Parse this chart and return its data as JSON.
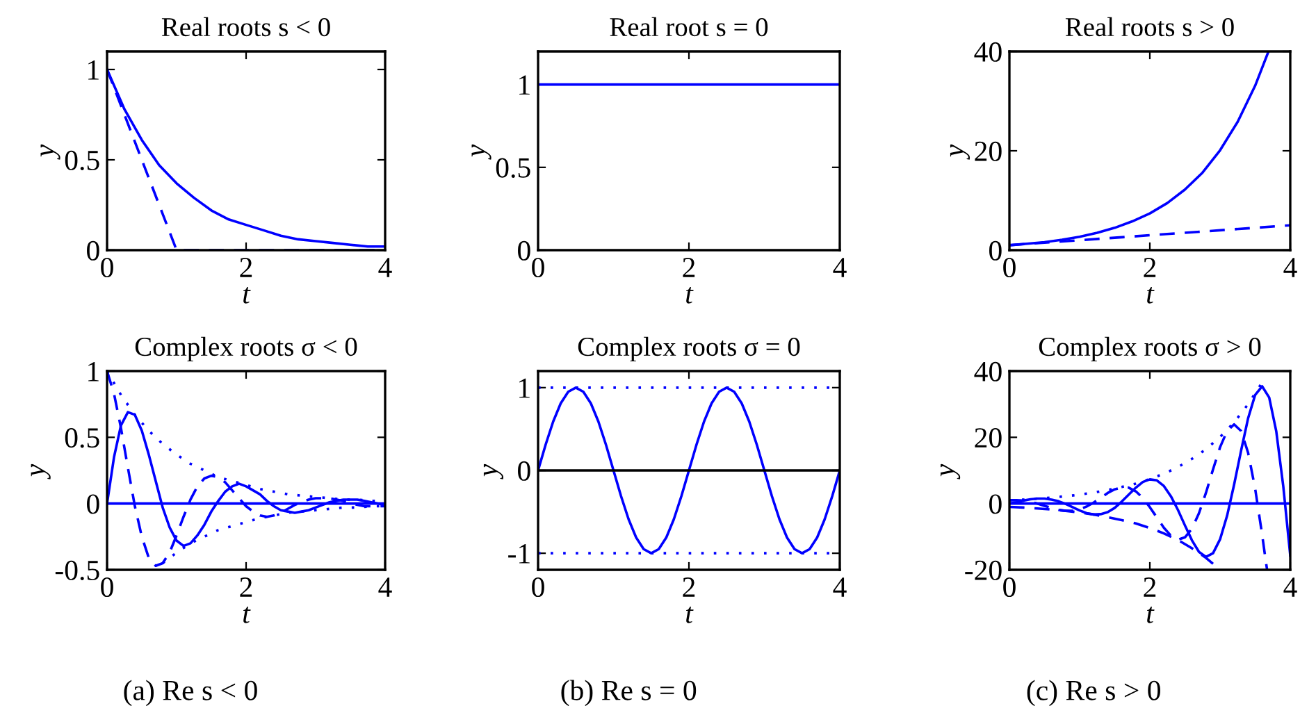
{
  "chart_data": [
    {
      "type": "line",
      "title": "Real roots s < 0",
      "xlabel": "t",
      "ylabel": "y",
      "xlim": [
        0,
        4
      ],
      "xticks": [
        0,
        2,
        4
      ],
      "ylim": [
        0,
        1.1
      ],
      "yticks": [
        0,
        0.5,
        1
      ],
      "series": [
        {
          "color": "#0000ff",
          "line_style": "solid",
          "x": [
            0,
            0.25,
            0.5,
            0.75,
            1,
            1.25,
            1.5,
            1.75,
            2,
            2.25,
            2.5,
            2.75,
            3,
            3.25,
            3.5,
            3.75,
            4
          ],
          "values": [
            1,
            0.78,
            0.61,
            0.47,
            0.37,
            0.29,
            0.22,
            0.17,
            0.14,
            0.11,
            0.08,
            0.06,
            0.05,
            0.04,
            0.03,
            0.02,
            0.02
          ]
        },
        {
          "color": "#0000ff",
          "line_style": "dashed",
          "x": [
            0,
            1,
            4
          ],
          "values": [
            1,
            0,
            0
          ]
        }
      ]
    },
    {
      "type": "line",
      "title": "Real root s = 0",
      "xlabel": "t",
      "ylabel": "y",
      "xlim": [
        0,
        4
      ],
      "xticks": [
        0,
        2,
        4
      ],
      "ylim": [
        0,
        1.2
      ],
      "yticks": [
        0,
        0.5,
        1
      ],
      "series": [
        {
          "color": "#0000ff",
          "line_style": "solid",
          "x": [
            0,
            4
          ],
          "values": [
            1,
            1
          ]
        }
      ]
    },
    {
      "type": "line",
      "title": "Real roots s > 0",
      "xlabel": "t",
      "ylabel": "y",
      "xlim": [
        0,
        4
      ],
      "xticks": [
        0,
        2,
        4
      ],
      "ylim": [
        0,
        40
      ],
      "yticks": [
        0,
        20,
        40
      ],
      "series": [
        {
          "color": "#0000ff",
          "line_style": "solid",
          "x": [
            0,
            0.25,
            0.5,
            0.75,
            1,
            1.25,
            1.5,
            1.75,
            2,
            2.25,
            2.5,
            2.75,
            3,
            3.25,
            3.5,
            3.69
          ],
          "values": [
            1,
            1.3,
            1.6,
            2.1,
            2.7,
            3.5,
            4.5,
            5.8,
            7.4,
            9.5,
            12.2,
            15.6,
            20.1,
            25.8,
            33.1,
            40
          ]
        },
        {
          "color": "#0000ff",
          "line_style": "dashed",
          "x": [
            0,
            4
          ],
          "values": [
            1,
            5
          ]
        }
      ]
    },
    {
      "type": "line",
      "title": "Complex roots σ < 0",
      "xlabel": "t",
      "ylabel": "y",
      "xlim": [
        0,
        4
      ],
      "xticks": [
        0,
        2,
        4
      ],
      "ylim": [
        -0.5,
        1
      ],
      "yticks": [
        -0.5,
        0,
        0.5,
        1
      ],
      "annotations": [
        "(a) Re s < 0"
      ],
      "series": [
        {
          "color": "#0000ff",
          "line_style": "solid",
          "x": [
            0,
            0.1,
            0.2,
            0.3,
            0.4,
            0.5,
            0.6,
            0.7,
            0.8,
            0.9,
            1.0,
            1.1,
            1.2,
            1.3,
            1.4,
            1.5,
            1.6,
            1.7,
            1.8,
            1.9,
            2.0,
            2.1,
            2.2,
            2.3,
            2.4,
            2.5,
            2.6,
            2.7,
            2.8,
            2.9,
            3.0,
            3.1,
            3.2,
            3.3,
            3.4,
            3.5,
            3.6,
            3.7,
            3.8,
            3.9,
            4.0
          ],
          "values": [
            0,
            0.35,
            0.59,
            0.69,
            0.67,
            0.55,
            0.37,
            0.17,
            -0.03,
            -0.18,
            -0.28,
            -0.32,
            -0.3,
            -0.24,
            -0.16,
            -0.06,
            0.02,
            0.09,
            0.13,
            0.15,
            0.13,
            0.1,
            0.07,
            0.02,
            -0.02,
            -0.05,
            -0.06,
            -0.07,
            -0.06,
            -0.05,
            -0.03,
            -0.01,
            0.01,
            0.02,
            0.03,
            0.03,
            0.03,
            0.02,
            0.01,
            0,
            -0.01
          ]
        },
        {
          "color": "#0000ff",
          "line_style": "dashed",
          "x": [
            0,
            0.1,
            0.2,
            0.3,
            0.4,
            0.5,
            0.6,
            0.7,
            0.8,
            0.9,
            1.0,
            1.1,
            1.2,
            1.3,
            1.4,
            1.5,
            1.6,
            1.7,
            1.8,
            1.9,
            2.0,
            2.1,
            2.2,
            2.3,
            2.4,
            2.5,
            2.6,
            2.7,
            2.8,
            2.9,
            3.0,
            3.1,
            3.2,
            3.3,
            3.4,
            3.5,
            3.6,
            3.7,
            3.8,
            3.9,
            4.0
          ],
          "values": [
            1,
            0.83,
            0.57,
            0.27,
            -0.02,
            -0.25,
            -0.41,
            -0.47,
            -0.45,
            -0.37,
            -0.24,
            -0.1,
            0.03,
            0.13,
            0.19,
            0.21,
            0.2,
            0.16,
            0.1,
            0.04,
            -0.02,
            -0.06,
            -0.09,
            -0.1,
            -0.09,
            -0.07,
            -0.04,
            -0.01,
            0.01,
            0.03,
            0.04,
            0.04,
            0.04,
            0.03,
            0.02,
            0,
            -0.01,
            -0.02,
            -0.02,
            -0.02,
            -0.02
          ]
        },
        {
          "color": "#0000ff",
          "line_style": "dotted",
          "x": [
            0,
            0.2,
            0.4,
            0.6,
            0.8,
            1.0,
            1.2,
            1.4,
            1.6,
            1.8,
            2.0,
            2.2,
            2.4,
            2.6,
            2.8,
            3.0,
            3.2,
            3.4,
            3.6,
            3.8,
            4.0
          ],
          "values": [
            1,
            0.82,
            0.67,
            0.55,
            0.45,
            0.37,
            0.3,
            0.25,
            0.2,
            0.17,
            0.14,
            0.11,
            0.09,
            0.07,
            0.06,
            0.05,
            0.04,
            0.03,
            0.03,
            0.02,
            0.02
          ]
        },
        {
          "color": "#0000ff",
          "line_style": "dotted",
          "x": [
            0.8,
            1.0,
            1.2,
            1.4,
            1.6,
            1.8,
            2.0,
            2.2,
            2.4,
            2.6,
            2.8,
            3.0,
            3.2,
            3.4,
            3.6,
            3.8,
            4.0
          ],
          "values": [
            -0.45,
            -0.37,
            -0.3,
            -0.25,
            -0.2,
            -0.17,
            -0.14,
            -0.11,
            -0.09,
            -0.07,
            -0.06,
            -0.05,
            -0.04,
            -0.03,
            -0.03,
            -0.02,
            -0.02
          ]
        },
        {
          "color": "#0000ff",
          "line_style": "solid",
          "x": [
            0,
            4
          ],
          "values": [
            0,
            0
          ]
        }
      ]
    },
    {
      "type": "line",
      "title": "Complex roots σ = 0",
      "xlabel": "t",
      "ylabel": "y",
      "xlim": [
        0,
        4
      ],
      "xticks": [
        0,
        2,
        4
      ],
      "ylim": [
        -1.2,
        1.2
      ],
      "yticks": [
        -1,
        0,
        1
      ],
      "annotations": [
        "(b) Re s = 0"
      ],
      "series": [
        {
          "color": "#0000ff",
          "line_style": "solid",
          "x": [
            0,
            0.1,
            0.2,
            0.3,
            0.4,
            0.5,
            0.6,
            0.7,
            0.8,
            0.9,
            1.0,
            1.1,
            1.2,
            1.3,
            1.4,
            1.5,
            1.6,
            1.7,
            1.8,
            1.9,
            2.0,
            2.1,
            2.2,
            2.3,
            2.4,
            2.5,
            2.6,
            2.7,
            2.8,
            2.9,
            3.0,
            3.1,
            3.2,
            3.3,
            3.4,
            3.5,
            3.6,
            3.7,
            3.8,
            3.9,
            4.0
          ],
          "values": [
            0,
            0.31,
            0.59,
            0.81,
            0.95,
            1,
            0.95,
            0.81,
            0.59,
            0.31,
            0,
            -0.31,
            -0.59,
            -0.81,
            -0.95,
            -1,
            -0.95,
            -0.81,
            -0.59,
            -0.31,
            0,
            0.31,
            0.59,
            0.81,
            0.95,
            1,
            0.95,
            0.81,
            0.59,
            0.31,
            0,
            -0.31,
            -0.59,
            -0.81,
            -0.95,
            -1,
            -0.95,
            -0.81,
            -0.59,
            -0.31,
            0
          ]
        },
        {
          "color": "#0000ff",
          "line_style": "dotted",
          "x": [
            0,
            4
          ],
          "values": [
            1,
            1
          ]
        },
        {
          "color": "#0000ff",
          "line_style": "dotted",
          "x": [
            0,
            4
          ],
          "values": [
            -1,
            -1
          ]
        },
        {
          "color": "#000000",
          "line_style": "solid",
          "x": [
            0,
            4
          ],
          "values": [
            0,
            0
          ]
        }
      ]
    },
    {
      "type": "line",
      "title": "Complex roots σ > 0",
      "xlabel": "t",
      "ylabel": "y",
      "xlim": [
        0,
        4
      ],
      "xticks": [
        0,
        2,
        4
      ],
      "ylim": [
        -20,
        40
      ],
      "yticks": [
        -20,
        0,
        20,
        40
      ],
      "annotations": [
        "(c) Re s > 0"
      ],
      "series": [
        {
          "color": "#0000ff",
          "line_style": "solid",
          "x": [
            0,
            0.1,
            0.2,
            0.3,
            0.4,
            0.5,
            0.6,
            0.7,
            0.8,
            0.9,
            1.0,
            1.1,
            1.2,
            1.3,
            1.4,
            1.5,
            1.6,
            1.7,
            1.8,
            1.9,
            2.0,
            2.1,
            2.2,
            2.3,
            2.4,
            2.5,
            2.6,
            2.7,
            2.8,
            2.9,
            3.0,
            3.1,
            3.2,
            3.3,
            3.4,
            3.5,
            3.6,
            3.7,
            3.8,
            3.9,
            4.0
          ],
          "values": [
            0,
            0.4,
            0.9,
            1.3,
            1.5,
            1.5,
            1.2,
            0.7,
            -0.1,
            -1.1,
            -2.1,
            -2.9,
            -3.3,
            -3.2,
            -2.6,
            -1.3,
            0.6,
            2.7,
            4.8,
            6.5,
            7.3,
            7,
            5.3,
            2.2,
            -1.9,
            -6.6,
            -11.1,
            -14.6,
            -16.1,
            -15,
            -10.8,
            -3.7,
            5.7,
            16,
            25.8,
            32.8,
            35.4,
            32,
            21.9,
            5.3,
            -15.7
          ]
        },
        {
          "color": "#0000ff",
          "line_style": "dashed",
          "x": [
            0,
            0.1,
            0.2,
            0.3,
            0.4,
            0.5,
            0.6,
            0.7,
            0.8,
            0.9,
            1.0,
            1.1,
            1.2,
            1.3,
            1.4,
            1.5,
            1.6,
            1.7,
            1.8,
            1.9,
            2.0,
            2.1,
            2.2,
            2.3,
            2.4,
            2.5,
            2.6,
            2.7,
            2.8,
            2.9,
            3.0,
            3.1,
            3.2,
            3.3,
            3.4,
            3.5,
            3.6,
            3.65,
            3.67
          ],
          "values": [
            1,
            1,
            0.9,
            0.5,
            0,
            -0.7,
            -1.3,
            -1.9,
            -2.2,
            -2.2,
            -1.8,
            -0.9,
            0.3,
            1.7,
            3.2,
            4.3,
            4.9,
            4.8,
            3.7,
            1.7,
            -1.1,
            -4.2,
            -7.3,
            -9.7,
            -10.9,
            -10.2,
            -7.6,
            -2.9,
            3.3,
            10.3,
            17,
            21.9,
            23.9,
            21.9,
            15.3,
            4.5,
            -9.5,
            -17.2,
            -20
          ]
        },
        {
          "color": "#0000ff",
          "line_style": "dotted",
          "x": [
            0,
            0.2,
            0.4,
            0.6,
            0.8,
            1.0,
            1.2,
            1.4,
            1.6,
            1.8,
            2.0,
            2.2,
            2.4,
            2.6,
            2.8,
            3.0,
            3.2,
            3.4,
            3.6
          ],
          "values": [
            1,
            1.2,
            1.5,
            1.8,
            2.2,
            2.7,
            3.3,
            4.1,
            5,
            6,
            7.4,
            9,
            11,
            13.5,
            16.4,
            20.1,
            24.5,
            30,
            36.6
          ]
        },
        {
          "color": "#0000ff",
          "line_style": "dashed",
          "x": [
            0,
            0.2,
            0.4,
            0.6,
            0.8,
            1.0,
            1.2,
            1.4,
            1.6,
            1.8,
            2.0,
            2.2,
            2.4,
            2.6,
            2.8,
            2.9
          ],
          "values": [
            -1,
            -1.2,
            -1.5,
            -1.8,
            -2.2,
            -2.7,
            -3.3,
            -4.1,
            -5,
            -6,
            -7.4,
            -9,
            -11,
            -13.5,
            -16.4,
            -18.2
          ]
        },
        {
          "color": "#0000ff",
          "line_style": "solid",
          "x": [
            0,
            4
          ],
          "values": [
            0,
            0
          ]
        }
      ]
    }
  ]
}
